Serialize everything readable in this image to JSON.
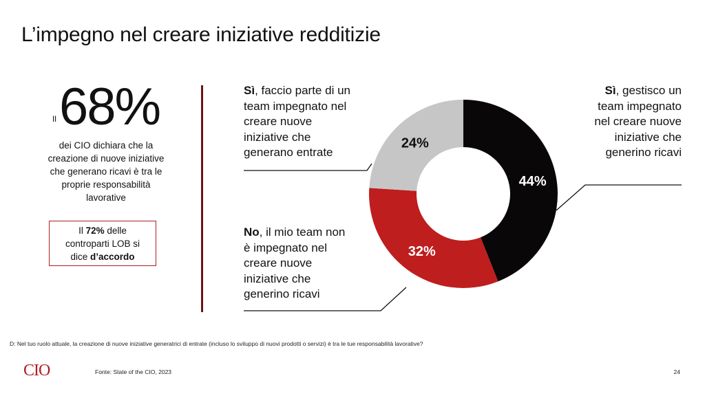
{
  "title": "L’impegno nel creare iniziative redditizie",
  "stat": {
    "prefix": "Il",
    "value": "68%",
    "desc_lines": [
      "dei CIO dichiara che la",
      "creazione di nuove iniziative",
      "che generano ricavi è tra le",
      "proprie responsabilità",
      "lavorative"
    ]
  },
  "lob_box": {
    "pre": "Il ",
    "pct": "72%",
    "mid": " delle",
    "line2": "controparti LOB si",
    "line3_pre": "dice ",
    "line3_bold": "d’accordo"
  },
  "labels": {
    "a": {
      "bold": "Sì",
      "rest": ", faccio parte di un",
      "lines": [
        "team impegnato nel",
        "creare nuove",
        "iniziative che",
        "generano entrate"
      ]
    },
    "b": {
      "bold": "No",
      "rest": ", il mio team non",
      "lines": [
        "è impegnato nel",
        "creare nuove",
        "iniziative che",
        "generino ricavi"
      ]
    },
    "c": {
      "bold": "Sì",
      "rest": ", gestisco un",
      "lines": [
        "team impegnato",
        "nel creare nuove",
        "iniziative che",
        "generino ricavi"
      ]
    }
  },
  "chart_data": {
    "type": "pie",
    "donut": true,
    "slices": [
      {
        "label": "Sì, gestisco un team impegnato nel creare nuove iniziative che generino ricavi",
        "value": 44,
        "display": "44%",
        "color": "#0a0708"
      },
      {
        "label": "No, il mio team non è impegnato nel creare nuove iniziative che generino ricavi",
        "value": 32,
        "display": "32%",
        "color": "#be1e1e"
      },
      {
        "label": "Sì, faccio parte di un team impegnato nel creare nuove iniziative che generano entrate",
        "value": 24,
        "display": "24%",
        "color": "#c6c6c6"
      }
    ]
  },
  "footnote": "D: Nel tuo ruolo attuale, la creazione di nuove iniziative generatrici di entrate (incluso lo sviluppo di nuovi prodotti o servizi) è tra le tue responsabilità lavorative?",
  "logo": "CIO",
  "source": "Fonte: State of the CIO, 2023",
  "page_number": "24",
  "colors": {
    "accent": "#be1e1e",
    "divider": "#6b1213"
  }
}
